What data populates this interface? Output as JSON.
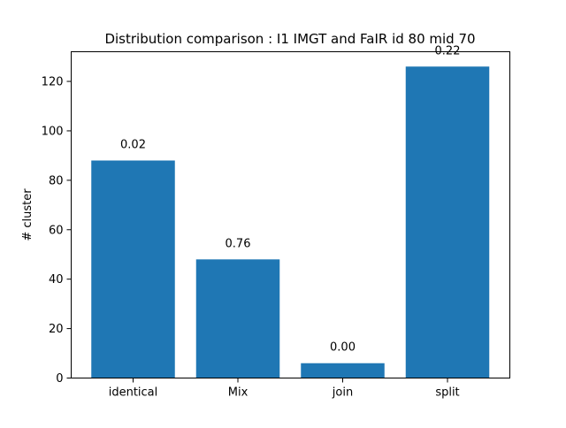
{
  "chart_data": {
    "type": "bar",
    "title": "Distribution comparison : I1 IMGT and FaIR id 80 mid 70",
    "xlabel": "",
    "ylabel": "# cluster",
    "categories": [
      "identical",
      "Mix",
      "join",
      "split"
    ],
    "values": [
      88,
      48,
      6,
      126
    ],
    "data_labels": [
      "0.02",
      "0.76",
      "0.00",
      "0.22"
    ],
    "ylim": [
      0,
      132
    ],
    "yticks": [
      0,
      20,
      40,
      60,
      80,
      100,
      120
    ],
    "ytick_labels": [
      "0",
      "20",
      "40",
      "60",
      "80",
      "100",
      "120"
    ],
    "bar_color": "#1f77b4",
    "grid": false,
    "legend": "none"
  }
}
